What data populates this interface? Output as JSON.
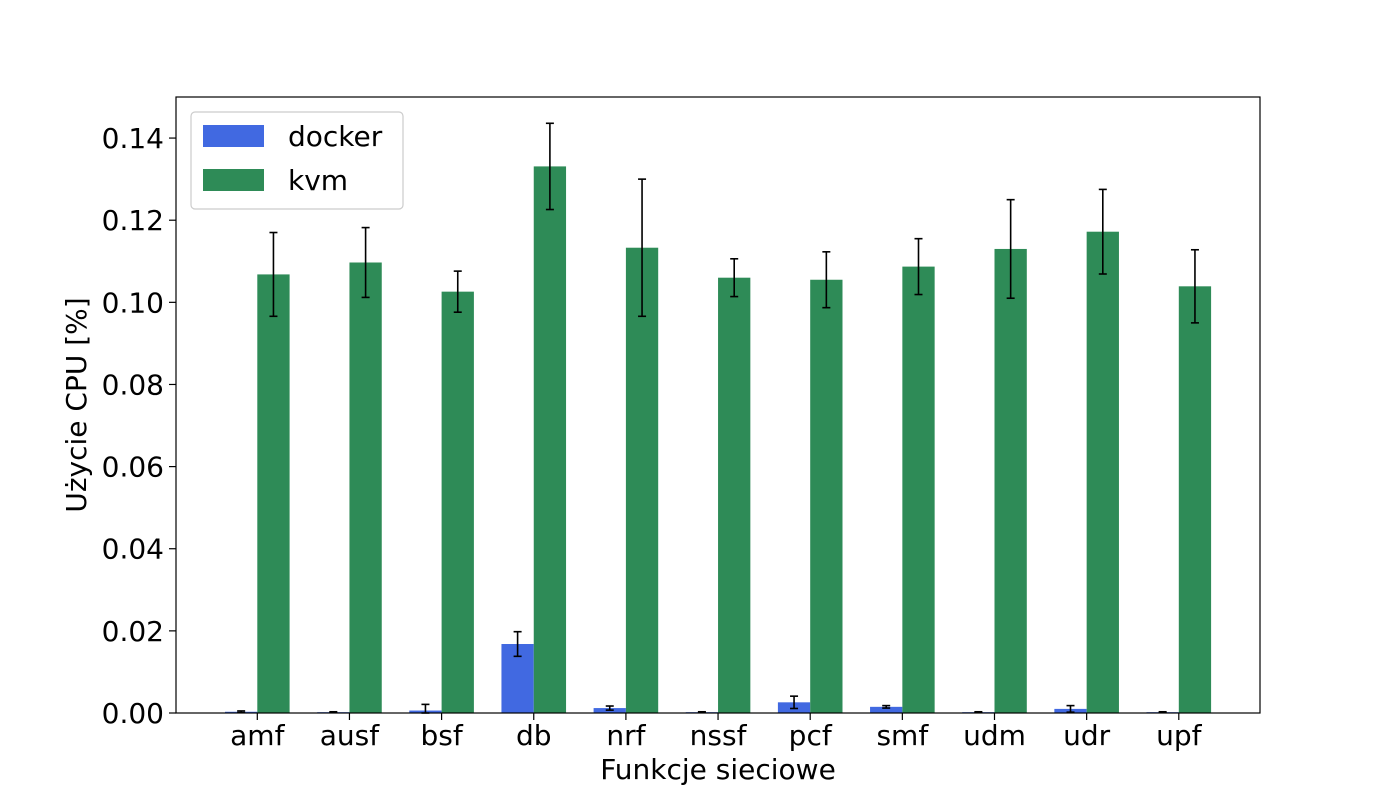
{
  "chart_data": {
    "type": "bar",
    "title": "",
    "xlabel": "Funkcje sieciowe",
    "ylabel": "Użycie CPU [%]",
    "categories": [
      "amf",
      "ausf",
      "bsf",
      "db",
      "nrf",
      "nssf",
      "pcf",
      "smf",
      "udm",
      "udr",
      "upf"
    ],
    "ylim": [
      0,
      0.15
    ],
    "yticks": [
      0.0,
      0.02,
      0.04,
      0.06,
      0.08,
      0.1,
      0.12,
      0.14
    ],
    "ytick_labels": [
      "0.00",
      "0.02",
      "0.04",
      "0.06",
      "0.08",
      "0.10",
      "0.12",
      "0.14"
    ],
    "grid": false,
    "legend_position": "top-left",
    "series": [
      {
        "name": "docker",
        "color": "#4169e1",
        "values": [
          0.0003,
          0.0002,
          0.0006,
          0.0168,
          0.0012,
          0.0002,
          0.0026,
          0.0015,
          0.0002,
          0.001,
          0.0002
        ],
        "errors": [
          0.0002,
          0.0001,
          0.0015,
          0.003,
          0.0005,
          0.0001,
          0.0015,
          0.0003,
          0.0001,
          0.0008,
          0.0001
        ]
      },
      {
        "name": "kvm",
        "color": "#2e8b57",
        "values": [
          0.1068,
          0.1097,
          0.1026,
          0.1331,
          0.1133,
          0.106,
          0.1055,
          0.1087,
          0.113,
          0.1172,
          0.1039
        ],
        "errors": [
          0.0102,
          0.0085,
          0.005,
          0.0105,
          0.0167,
          0.0046,
          0.0068,
          0.0068,
          0.012,
          0.0103,
          0.0089
        ]
      }
    ]
  }
}
